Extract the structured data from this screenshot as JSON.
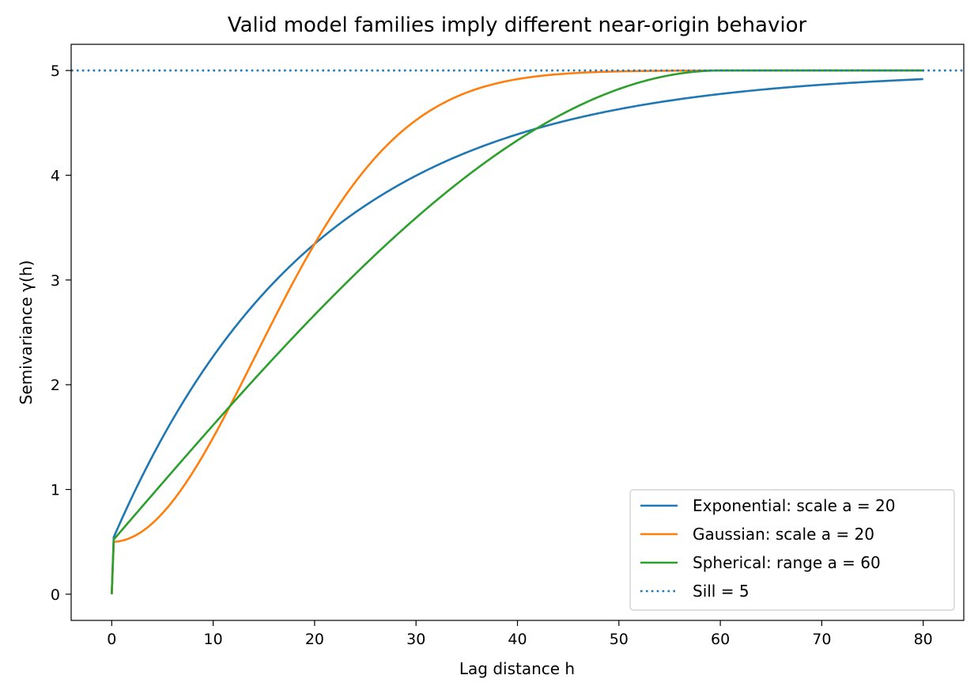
{
  "chart_data": {
    "type": "line",
    "title": "Valid model families imply different near-origin behavior",
    "xlabel": "Lag distance h",
    "ylabel": "Semivariance γ(h)",
    "xlim": [
      -4,
      84
    ],
    "ylim": [
      -0.25,
      5.25
    ],
    "xticks": [
      0,
      10,
      20,
      30,
      40,
      50,
      60,
      70,
      80
    ],
    "yticks": [
      0,
      1,
      2,
      3,
      4,
      5
    ],
    "grid": false,
    "legend_position": "lower-right",
    "model": {
      "nugget": 0.5,
      "sill": 5,
      "h_max": 80
    },
    "series": [
      {
        "name": "Exponential: scale a = 20",
        "kind": "exponential",
        "a": 20,
        "color": "#1f77b4",
        "style": "solid"
      },
      {
        "name": "Gaussian: scale a = 20",
        "kind": "gaussian",
        "a": 20,
        "color": "#ff7f0e",
        "style": "solid"
      },
      {
        "name": "Spherical: range a = 60",
        "kind": "spherical",
        "a": 60,
        "color": "#2ca02c",
        "style": "solid"
      },
      {
        "name": "Sill = 5",
        "kind": "hline",
        "y": 5,
        "color": "#1f77b4",
        "style": "dotted"
      }
    ]
  }
}
